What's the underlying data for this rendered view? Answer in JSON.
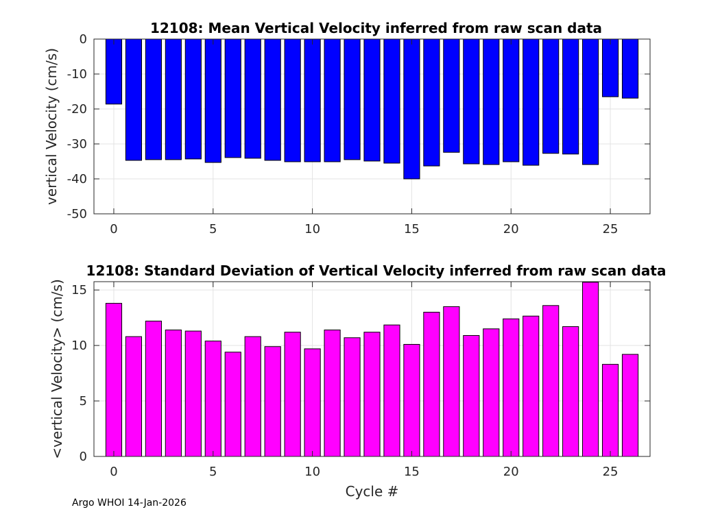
{
  "chart_data": [
    {
      "type": "bar",
      "title": "12108: Mean Vertical Velocity inferred from raw scan data",
      "xlabel": "",
      "ylabel": "vertical Velocity (cm/s)",
      "xlim": [
        -1,
        27
      ],
      "ylim": [
        -50,
        0
      ],
      "xticks": [
        0,
        5,
        10,
        15,
        20,
        25
      ],
      "yticks": [
        -50,
        -40,
        -30,
        -20,
        -10,
        0
      ],
      "grid": true,
      "color": "#0000ff",
      "categories": [
        0,
        1,
        2,
        3,
        4,
        5,
        6,
        7,
        8,
        9,
        10,
        11,
        12,
        13,
        14,
        15,
        16,
        17,
        18,
        19,
        20,
        21,
        22,
        23,
        24,
        25,
        26
      ],
      "values": [
        -18.6,
        -34.7,
        -34.5,
        -34.5,
        -34.3,
        -35.3,
        -33.9,
        -34.1,
        -34.7,
        -35.1,
        -35.1,
        -35.1,
        -34.5,
        -34.9,
        -35.5,
        -40.0,
        -36.3,
        -32.4,
        -35.7,
        -35.9,
        -35.1,
        -36.1,
        -32.7,
        -32.9,
        -35.9,
        -16.5,
        -16.9
      ]
    },
    {
      "type": "bar",
      "title": "12108: Standard Deviation of Vertical Velocity inferred from raw scan data",
      "xlabel": "Cycle #",
      "ylabel": "<vertical Velocity> (cm/s)",
      "xlim": [
        -1,
        27
      ],
      "ylim": [
        0,
        15.75
      ],
      "xticks": [
        0,
        5,
        10,
        15,
        20,
        25
      ],
      "yticks": [
        0,
        5,
        10,
        15
      ],
      "grid": true,
      "color": "#ff00ff",
      "categories": [
        0,
        1,
        2,
        3,
        4,
        5,
        6,
        7,
        8,
        9,
        10,
        11,
        12,
        13,
        14,
        15,
        16,
        17,
        18,
        19,
        20,
        21,
        22,
        23,
        24,
        25,
        26
      ],
      "values": [
        13.8,
        10.8,
        12.2,
        11.4,
        11.3,
        10.4,
        9.4,
        10.8,
        9.9,
        11.2,
        9.7,
        11.4,
        10.7,
        11.2,
        11.85,
        10.1,
        13.0,
        13.5,
        10.9,
        11.5,
        12.4,
        12.65,
        13.6,
        11.7,
        15.7,
        8.3,
        9.2
      ]
    }
  ],
  "footer": "Argo WHOI 14-Jan-2026"
}
